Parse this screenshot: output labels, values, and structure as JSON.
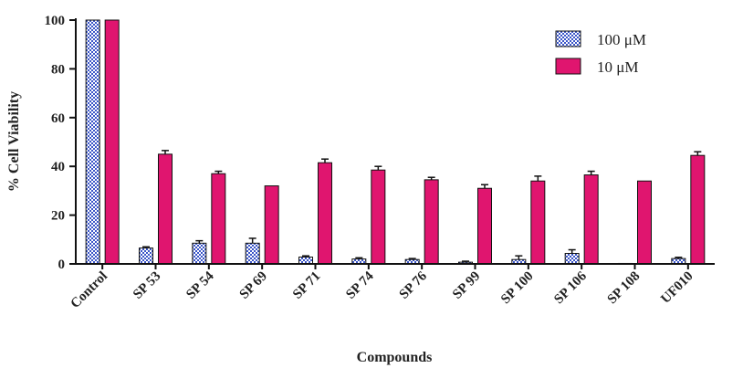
{
  "chart_data": {
    "type": "bar",
    "xlabel": "Compounds",
    "ylabel": "% Cell Viability",
    "ylim": [
      0,
      100
    ],
    "yticks": [
      "0",
      "20",
      "40",
      "60",
      "80",
      "100"
    ],
    "categories": [
      "Control",
      "SP 53",
      "SP 54",
      "SP 69",
      "SP 71",
      "SP 74",
      "SP 76",
      "SP 99",
      "SP 100",
      "SP 106",
      "SP 108",
      "UF010"
    ],
    "series": [
      {
        "name": "100 μM",
        "color": "#3a55c8",
        "pattern": "checkered",
        "values": [
          100,
          6.5,
          8.5,
          8.5,
          2.8,
          2.0,
          1.8,
          0.7,
          1.8,
          4.3,
          0.2,
          2.2
        ],
        "errors": [
          0,
          0.5,
          1.0,
          2.0,
          0.5,
          0.5,
          0.4,
          0.4,
          1.5,
          1.5,
          0,
          0.5
        ]
      },
      {
        "name": "10 μM",
        "color": "#e0156f",
        "pattern": "solid",
        "values": [
          100,
          45.0,
          37.0,
          32.0,
          41.5,
          38.5,
          34.5,
          31.0,
          34.0,
          36.5,
          34.0,
          44.5
        ],
        "errors": [
          0,
          1.5,
          1.0,
          0,
          1.5,
          1.5,
          1.0,
          1.5,
          2.0,
          1.5,
          0,
          1.5
        ]
      }
    ],
    "legend_position": "top-right"
  }
}
